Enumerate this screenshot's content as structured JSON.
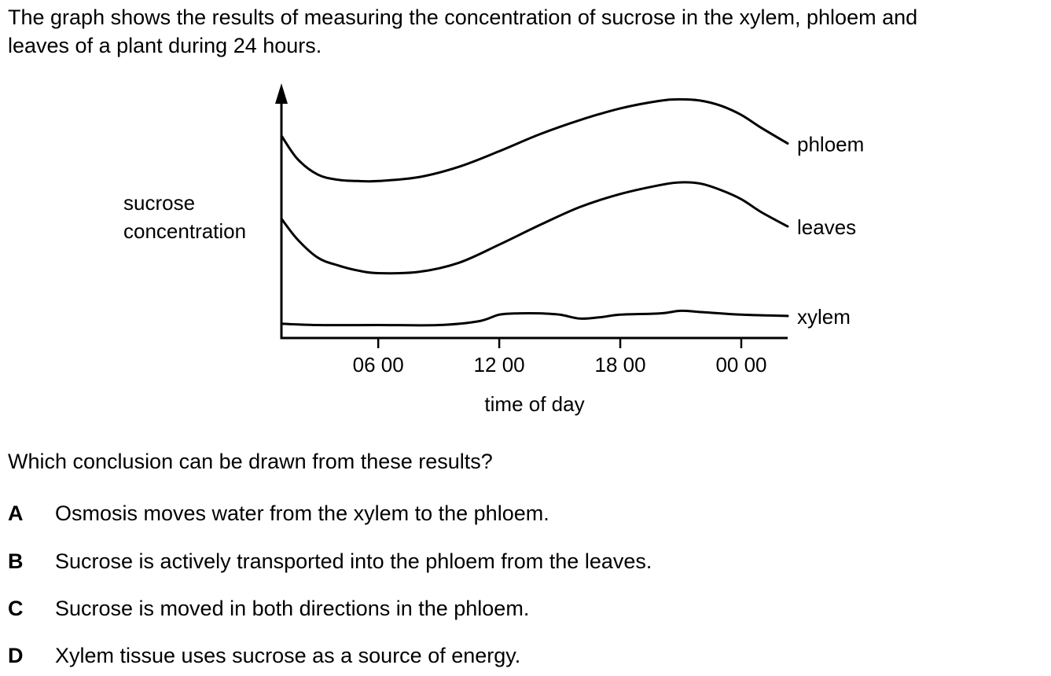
{
  "intro": {
    "line1": "The graph shows the results of measuring the concentration of sucrose in the xylem, phloem and",
    "line2": "leaves of a plant during 24 hours."
  },
  "chart_data": {
    "type": "line",
    "xlabel": "time of day",
    "ylabel_line1": "sucrose",
    "ylabel_line2": "concentration",
    "x_ticks": [
      "06 00",
      "12 00",
      "18 00",
      "00 00"
    ],
    "x_tick_hours": [
      6,
      12,
      18,
      24
    ],
    "xlim": [
      1.2,
      26.3
    ],
    "ylim": [
      0,
      100
    ],
    "y_ticks": false,
    "grid": false,
    "series": [
      {
        "name": "phloem",
        "x": [
          1.2,
          2,
          3,
          4,
          5,
          6,
          8,
          10,
          12,
          14,
          16,
          18,
          20,
          21,
          22,
          23,
          24,
          25,
          26.3
        ],
        "y": [
          78,
          69,
          63,
          61,
          60.5,
          60.5,
          62,
          66,
          72,
          78.5,
          84,
          88.5,
          91.5,
          92,
          91.5,
          89.5,
          86,
          81,
          75
        ]
      },
      {
        "name": "leaves",
        "x": [
          1.2,
          2,
          3,
          4,
          5,
          6,
          8,
          10,
          12,
          14,
          16,
          18,
          20,
          21,
          22,
          23,
          24,
          25,
          26.3
        ],
        "y": [
          46,
          38,
          31,
          28,
          26,
          25,
          25.5,
          29,
          36,
          43.5,
          50.5,
          55.5,
          59,
          60,
          59.5,
          57,
          53.5,
          48.5,
          43
        ]
      },
      {
        "name": "xylem",
        "x": [
          1.2,
          3,
          6,
          9,
          11,
          12,
          13,
          14,
          15,
          16,
          17,
          18,
          20,
          21,
          22,
          24,
          26.3
        ],
        "y": [
          5.5,
          5,
          5,
          5,
          6.5,
          9,
          9.5,
          9.5,
          9,
          7.5,
          8,
          9,
          9.5,
          10.5,
          10,
          9,
          8.5
        ]
      }
    ]
  },
  "question": "Which conclusion can be drawn from these results?",
  "options": [
    {
      "letter": "A",
      "text": "Osmosis moves water from the xylem to the phloem."
    },
    {
      "letter": "B",
      "text": "Sucrose is actively transported into the phloem from the leaves."
    },
    {
      "letter": "C",
      "text": "Sucrose is moved in both directions in the phloem."
    },
    {
      "letter": "D",
      "text": "Xylem tissue uses sucrose as a source of energy."
    }
  ]
}
